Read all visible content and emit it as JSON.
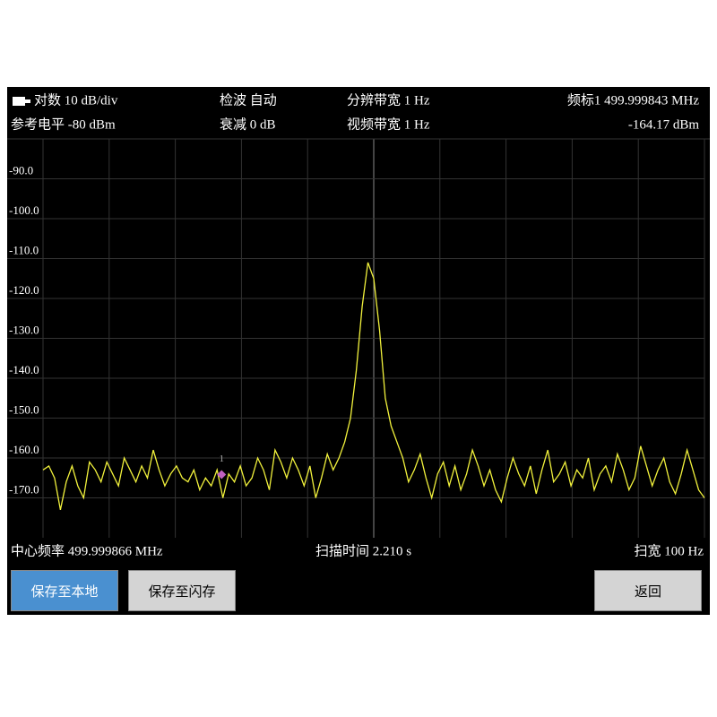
{
  "status": {
    "scale": "对数 10 dB/div",
    "detector": "检波 自动",
    "rbw": "分辨带宽 1 Hz",
    "marker_freq": "频标1  499.999843 MHz",
    "ref_level": "参考电平 -80 dBm",
    "atten": "衰减 0 dB",
    "vbw": "视频带宽 1 Hz",
    "marker_level": "-164.17 dBm",
    "center": "中心频率 499.999866 MHz",
    "sweep": "扫描时间 2.210 s",
    "span": "扫宽 100 Hz"
  },
  "buttons": [
    "保存至本地",
    "保存至闪存",
    "返回"
  ],
  "chart_data": {
    "type": "line",
    "color": "#f2f23c",
    "xlim": [
      499.999816,
      499.999916
    ],
    "ylim": [
      -180,
      -80
    ],
    "yticks": [
      {
        "value": -90,
        "label": "-90.0"
      },
      {
        "value": -100,
        "label": "-100.0"
      },
      {
        "value": -110,
        "label": "-110.0"
      },
      {
        "value": -120,
        "label": "-120.0"
      },
      {
        "value": -130,
        "label": "-130.0"
      },
      {
        "value": -140,
        "label": "-140.0"
      },
      {
        "value": -150,
        "label": "-150.0"
      },
      {
        "value": -160,
        "label": "-160.0"
      },
      {
        "value": -170,
        "label": "-170.0"
      }
    ],
    "values": [
      -163,
      -162,
      -165,
      -173,
      -166,
      -162,
      -167,
      -170,
      -161,
      -163,
      -166,
      -161,
      -164,
      -167,
      -160,
      -163,
      -166,
      -162,
      -165,
      -158,
      -163,
      -167,
      -164,
      -162,
      -165,
      -166,
      -163,
      -168,
      -165,
      -167,
      -163,
      -170,
      -164,
      -166,
      -162,
      -167,
      -165,
      -160,
      -163,
      -168,
      -158,
      -161,
      -165,
      -160,
      -163,
      -167,
      -162,
      -170,
      -165,
      -159,
      -163,
      -160,
      -156,
      -150,
      -138,
      -122,
      -111,
      -115,
      -128,
      -145,
      -152,
      -156,
      -160,
      -166,
      -163,
      -159,
      -165,
      -170,
      -164,
      -161,
      -167,
      -162,
      -168,
      -164,
      -158,
      -162,
      -167,
      -163,
      -168,
      -171,
      -165,
      -160,
      -164,
      -167,
      -162,
      -169,
      -163,
      -158,
      -166,
      -164,
      -161,
      -167,
      -163,
      -165,
      -160,
      -168,
      -164,
      -162,
      -166,
      -159,
      -163,
      -168,
      -165,
      -157,
      -162,
      -167,
      -163,
      -160,
      -166,
      -169,
      -164,
      -158,
      -163,
      -168,
      -170
    ],
    "marker": {
      "name": "1",
      "x": 499.999843,
      "value": -164.17
    }
  }
}
